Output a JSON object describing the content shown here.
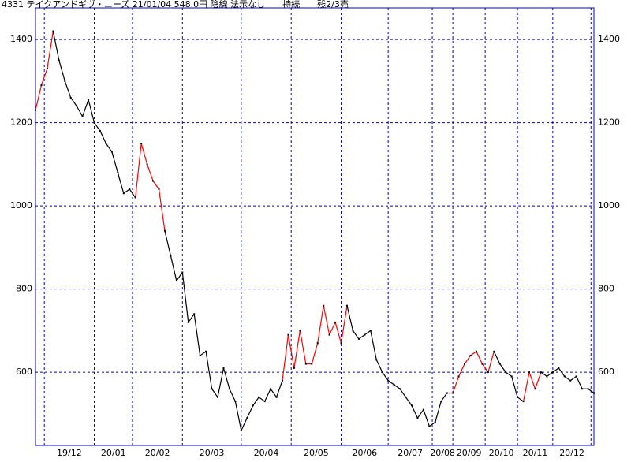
{
  "chart_data": {
    "type": "line",
    "title": "4331 テイクアンドギヴ・ニーズ 21/01/04 548.0円 陰線 法示なし　　持続　　残2/3売",
    "values": [
      1230,
      1290,
      1330,
      1420,
      1350,
      1300,
      1260,
      1240,
      1215,
      1255,
      1200,
      1180,
      1150,
      1130,
      1080,
      1030,
      1040,
      1020,
      1150,
      1100,
      1060,
      1040,
      940,
      880,
      820,
      840,
      720,
      740,
      640,
      650,
      560,
      540,
      610,
      560,
      530,
      460,
      490,
      520,
      540,
      530,
      560,
      540,
      580,
      690,
      610,
      700,
      620,
      620,
      670,
      760,
      690,
      720,
      670,
      760,
      700,
      680,
      690,
      700,
      630,
      600,
      580,
      570,
      560,
      540,
      520,
      490,
      510,
      470,
      480,
      530,
      550,
      550,
      590,
      620,
      640,
      650,
      620,
      600,
      650,
      620,
      600,
      590,
      540,
      530,
      600,
      560,
      600,
      590,
      600,
      610,
      590,
      580,
      590,
      560,
      560,
      550
    ],
    "color": "#000000",
    "up_color": "#ff0000",
    "up_segments": [
      [
        0,
        3
      ],
      [
        17,
        22
      ],
      [
        42,
        53
      ],
      [
        71,
        78
      ],
      [
        83,
        86
      ]
    ],
    "xlim": [
      0,
      95
    ],
    "month_starts": [
      1.5,
      10,
      16.5,
      25,
      35,
      43.5,
      52,
      60,
      67.5,
      71,
      76.5,
      82,
      88,
      94.5
    ],
    "xticks": [
      {
        "value": 5.75,
        "label": "19/12"
      },
      {
        "value": 13.25,
        "label": "20/01"
      },
      {
        "value": 20.75,
        "label": "20/02"
      },
      {
        "value": 30,
        "label": "20/03"
      },
      {
        "value": 39.25,
        "label": "20/04"
      },
      {
        "value": 47.75,
        "label": "20/05"
      },
      {
        "value": 56,
        "label": "20/06"
      },
      {
        "value": 63.75,
        "label": "20/07"
      },
      {
        "value": 69.25,
        "label": "20/08"
      },
      {
        "value": 73.75,
        "label": "20/09"
      },
      {
        "value": 79.25,
        "label": "20/10"
      },
      {
        "value": 85,
        "label": "20/11"
      },
      {
        "value": 91.25,
        "label": "20/12"
      }
    ],
    "ylim": [
      424,
      1476
    ],
    "yticks": [
      600,
      800,
      1000,
      1200,
      1400
    ],
    "grid": true,
    "grid_color": "#0000cc"
  }
}
